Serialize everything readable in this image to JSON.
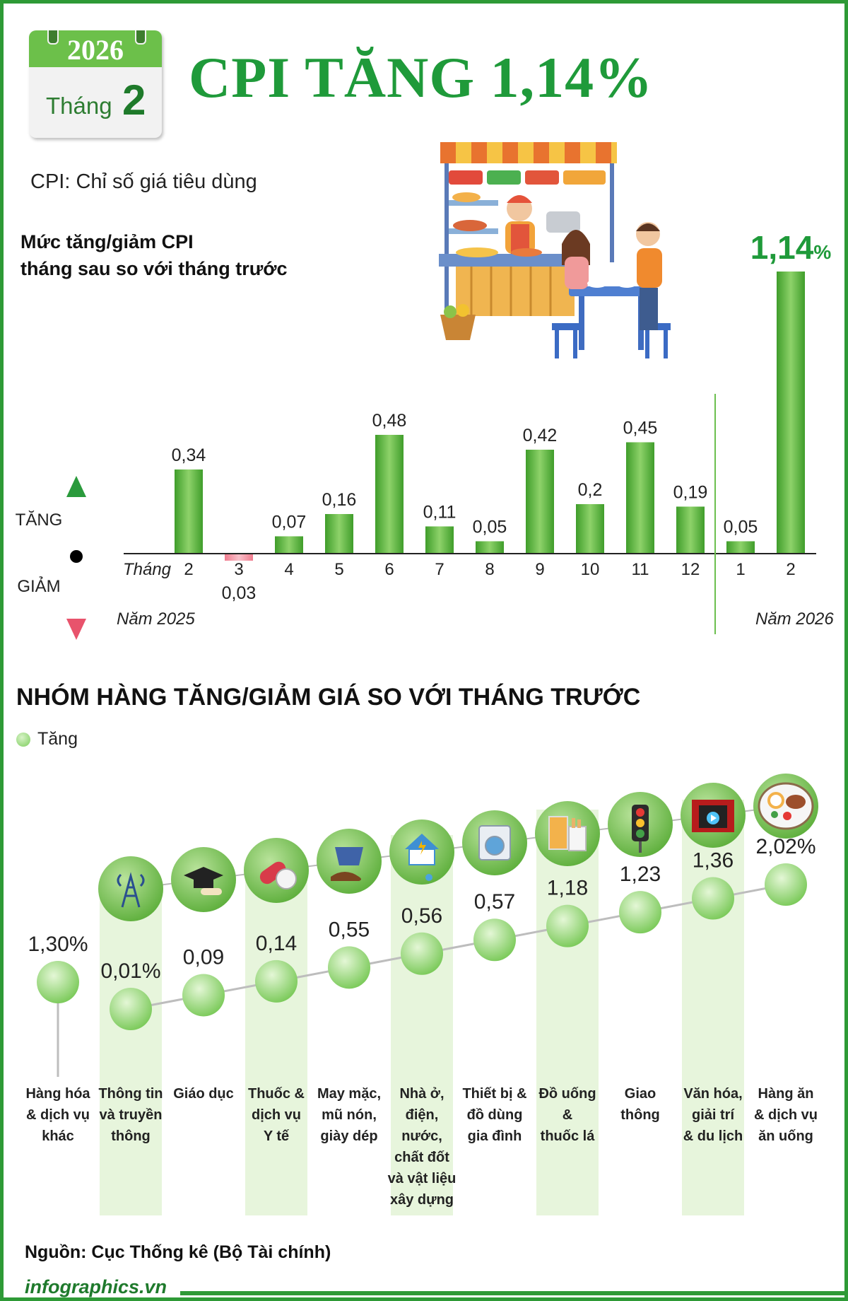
{
  "header": {
    "calendar_year": "2026",
    "calendar_month_label": "Tháng",
    "calendar_month_number": "2",
    "title": "CPI TĂNG 1,14%",
    "subtitle": "CPI: Chỉ số giá tiêu dùng"
  },
  "colors": {
    "brand_green": "#1f9a3a",
    "bar_green": "#4fae2e",
    "decrease_pink": "#f39aa8",
    "highlight": "#e7f5dc"
  },
  "chart_data": [
    {
      "type": "bar",
      "title": "Mức tăng/giảm CPI tháng sau so với tháng trước",
      "title_lines": [
        "Mức tăng/giảm CPI",
        "tháng sau so với tháng trước"
      ],
      "x_prefix": "Tháng",
      "up_label": "TĂNG",
      "down_label": "GIẢM",
      "categories": [
        "2",
        "3",
        "4",
        "5",
        "6",
        "7",
        "8",
        "9",
        "10",
        "11",
        "12",
        "1",
        "2"
      ],
      "values": [
        0.34,
        -0.03,
        0.07,
        0.16,
        0.48,
        0.11,
        0.05,
        0.42,
        0.2,
        0.45,
        0.19,
        0.05,
        1.14
      ],
      "value_labels": [
        "0,34",
        "0,03",
        "0,07",
        "0,16",
        "0,48",
        "0,11",
        "0,05",
        "0,42",
        "0,2",
        "0,45",
        "0,19",
        "0,05",
        "1,14"
      ],
      "last_value_suffix": "%",
      "year_groups": [
        {
          "label": "Năm 2025",
          "months": 11
        },
        {
          "label": "Năm 2026",
          "months": 2
        }
      ]
    },
    {
      "type": "line",
      "title": "NHÓM HÀNG TĂNG/GIẢM GIÁ SO VỚI THÁNG TRƯỚC",
      "legend": [
        "Tăng"
      ],
      "categories": [
        [
          "Hàng hóa",
          "& dịch vụ",
          "khác"
        ],
        [
          "Thông tin",
          "và truyền",
          "thông"
        ],
        [
          "Giáo dục"
        ],
        [
          "Thuốc &",
          "dịch vụ",
          "Y tế"
        ],
        [
          "May mặc,",
          "mũ nón,",
          "giày dép"
        ],
        [
          "Nhà ở,",
          "điện,",
          "nước,",
          "chất đốt",
          "và vật liệu",
          "xây dựng"
        ],
        [
          "Thiết bị &",
          "đồ dùng",
          "gia đình"
        ],
        [
          "Đồ uống",
          "&",
          "thuốc lá"
        ],
        [
          "Giao",
          "thông"
        ],
        [
          "Văn hóa,",
          "giải trí",
          "& du lịch"
        ],
        [
          "Hàng ăn",
          "& dịch vụ",
          "ăn uống"
        ]
      ],
      "values": [
        1.3,
        0.01,
        0.09,
        0.14,
        0.55,
        0.56,
        0.57,
        1.18,
        1.23,
        1.36,
        2.02
      ],
      "value_labels": [
        "1,30%",
        "0,01%",
        "0,09",
        "0,14",
        "0,55",
        "0,56",
        "0,57",
        "1,18",
        "1,23",
        "1,36",
        "2,02%"
      ],
      "icons": [
        null,
        "telecom-tower-icon",
        "graduation-cap-icon",
        "medicine-pill-icon",
        "clothing-shoes-icon",
        "house-utilities-icon",
        "washing-machine-icon",
        "drink-cigarette-icon",
        "traffic-light-icon",
        "cinema-icon",
        "food-plate-icon"
      ]
    }
  ],
  "source": "Nguồn: Cục Thống kê (Bộ Tài chính)",
  "footer": "infographics.vn"
}
